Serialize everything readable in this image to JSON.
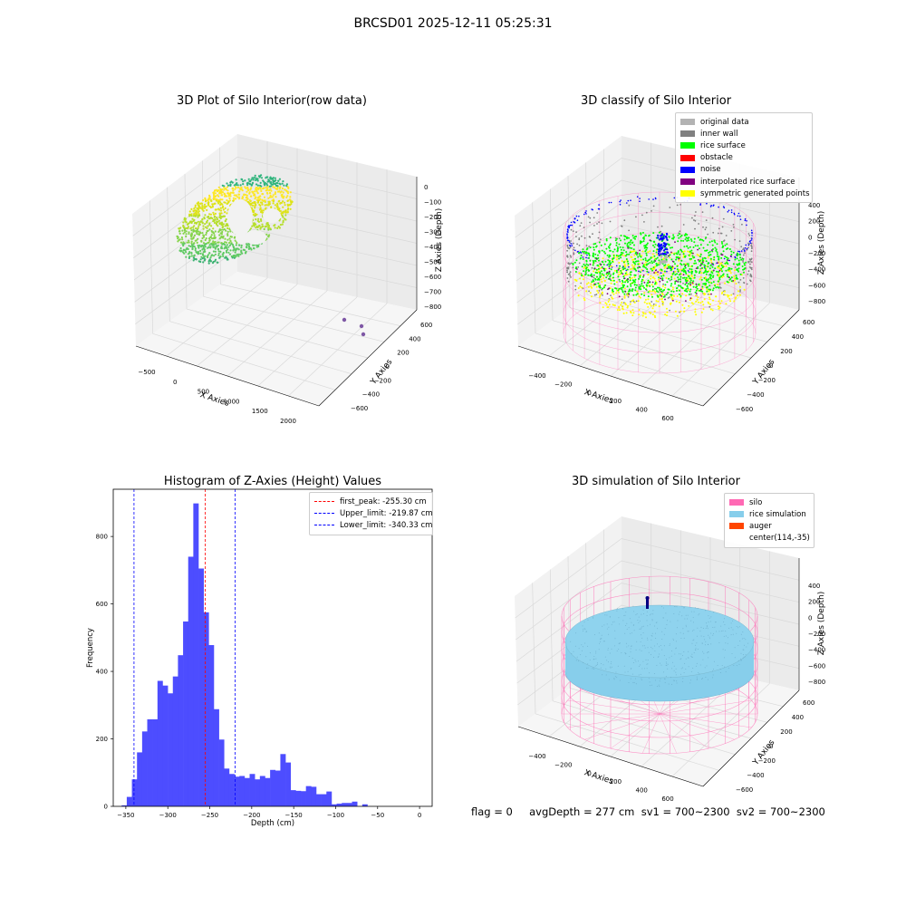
{
  "figure": {
    "suptitle": "BRCSD01 2025-12-11 05:25:31",
    "status_line": "flag = 0     avgDepth = 277 cm  sv1 = 700~2300  sv2 = 700~2300"
  },
  "chart_data": [
    {
      "type": "scatter",
      "subtype": "3d",
      "title": "3D Plot of Silo Interior(row data)",
      "xlabel": "X Axies",
      "ylabel": "Y Axies",
      "zlabel": "Z Axies (Depth)",
      "x_ticks": [
        "−500",
        "0",
        "500",
        "1000",
        "1500",
        "2000"
      ],
      "y_ticks": [
        "600",
        "400",
        "200",
        "0",
        "−200",
        "−400",
        "−600"
      ],
      "z_ticks": [
        "0",
        "−100",
        "−200",
        "−300",
        "−400",
        "−500",
        "−600",
        "−700",
        "−800"
      ],
      "colormap": "viridis",
      "outlier_color": "#7e57a5"
    },
    {
      "type": "scatter",
      "subtype": "3d",
      "title": "3D classify of Silo Interior",
      "xlabel": "X Axies",
      "ylabel": "Y Axies",
      "zlabel": "Z Axies (Depth)",
      "x_ticks": [
        "−400",
        "−200",
        "0",
        "200",
        "400",
        "600"
      ],
      "y_ticks": [
        "600",
        "400",
        "200",
        "0",
        "−200",
        "−400",
        "−600"
      ],
      "z_ticks": [
        "400",
        "200",
        "0",
        "−200",
        "−400",
        "−600",
        "−800"
      ],
      "legend_position": "top-right",
      "legend": [
        {
          "label": "original data",
          "color": "#b3b3b3"
        },
        {
          "label": "inner wall",
          "color": "#808080"
        },
        {
          "label": "rice surface",
          "color": "#00ff00"
        },
        {
          "label": "obstacle",
          "color": "#ff0000"
        },
        {
          "label": "noise",
          "color": "#0000ff"
        },
        {
          "label": "interpolated rice surface",
          "color": "#800080"
        },
        {
          "label": "symmetric generated points",
          "color": "#ffff00"
        }
      ],
      "wireframe_color": "#ff69b4"
    },
    {
      "type": "bar",
      "subtype": "histogram",
      "title": "Histogram of Z-Axies (Height) Values",
      "xlabel": "Depth (cm)",
      "ylabel": "Frequency",
      "xlim": [
        -365,
        15
      ],
      "ylim": [
        0,
        940
      ],
      "x_ticks": [
        -350,
        -300,
        -250,
        -200,
        -150,
        -100,
        -50,
        0
      ],
      "y_ticks": [
        0,
        200,
        400,
        600,
        800
      ],
      "bin_start": -355,
      "bin_width": 6.1,
      "values": [
        3,
        28,
        80,
        160,
        222,
        258,
        258,
        372,
        358,
        335,
        385,
        448,
        548,
        740,
        898,
        705,
        575,
        478,
        288,
        198,
        112,
        96,
        88,
        90,
        84,
        96,
        80,
        90,
        84,
        108,
        106,
        155,
        130,
        48,
        46,
        45,
        60,
        58,
        36,
        36,
        44,
        6,
        8,
        10,
        10,
        14,
        0,
        6
      ],
      "bar_color": "#4d4dff",
      "lines": [
        {
          "label": "first_peak: -255.30 cm",
          "x": -255.3,
          "color": "#ff0000"
        },
        {
          "label": "Upper_limit: -219.87 cm",
          "x": -219.87,
          "color": "#0000ff"
        },
        {
          "label": "Lower_limit: -340.33 cm",
          "x": -340.33,
          "color": "#0000ff"
        }
      ],
      "legend_position": "top-right"
    },
    {
      "type": "scatter",
      "subtype": "3d-surface",
      "title": "3D simulation of Silo Interior",
      "xlabel": "X Axies",
      "ylabel": "Y Axies",
      "zlabel": "Z Axies (Depth)",
      "x_ticks": [
        "−400",
        "−200",
        "0",
        "200",
        "400",
        "600"
      ],
      "y_ticks": [
        "600",
        "400",
        "200",
        "0",
        "−200",
        "−400",
        "−600"
      ],
      "z_ticks": [
        "400",
        "200",
        "0",
        "−200",
        "−400",
        "−600",
        "−800"
      ],
      "legend_position": "top-right",
      "legend": [
        {
          "label": "silo",
          "color": "#ff69b4"
        },
        {
          "label": "rice simulation",
          "color": "#87ceeb"
        },
        {
          "label": "auger",
          "color": "#ff4500"
        },
        {
          "label": "center(114,-35)",
          "color": ""
        }
      ]
    }
  ]
}
